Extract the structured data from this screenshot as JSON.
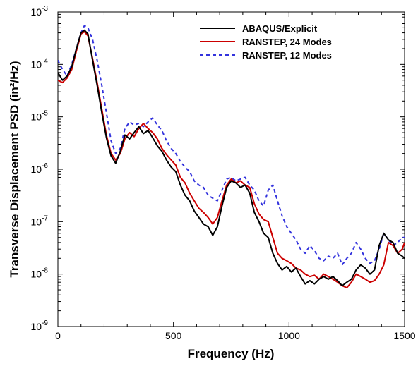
{
  "chart_data": {
    "type": "line",
    "xlabel": "Frequency (Hz)",
    "ylabel": "Transverse Displacement PSD (in²/Hz)",
    "xlim": [
      0,
      1500
    ],
    "ylim": [
      1e-09,
      0.001
    ],
    "y_scale": "log",
    "x_ticks": [
      "0",
      "500",
      "1000",
      "1500"
    ],
    "x_tick_values": [
      0,
      500,
      1000,
      1500
    ],
    "y_ticks": [
      {
        "base": "10",
        "exp": "-3",
        "value": 0.001
      },
      {
        "base": "10",
        "exp": "-4",
        "value": 0.0001
      },
      {
        "base": "10",
        "exp": "-5",
        "value": 1e-05
      },
      {
        "base": "10",
        "exp": "-6",
        "value": 1e-06
      },
      {
        "base": "10",
        "exp": "-7",
        "value": 1e-07
      },
      {
        "base": "10",
        "exp": "-8",
        "value": 1e-08
      },
      {
        "base": "10",
        "exp": "-9",
        "value": 1e-09
      }
    ],
    "grid": false,
    "legend_position": "top-right",
    "series": [
      {
        "name": "ABAQUS/Explicit",
        "color": "#000000",
        "dash": "solid",
        "x": [
          0,
          20,
          40,
          60,
          80,
          100,
          115,
          130,
          150,
          170,
          190,
          210,
          230,
          250,
          270,
          290,
          310,
          330,
          350,
          370,
          390,
          410,
          430,
          450,
          470,
          490,
          510,
          530,
          550,
          570,
          590,
          610,
          630,
          650,
          670,
          690,
          710,
          730,
          750,
          770,
          790,
          810,
          830,
          850,
          870,
          890,
          910,
          930,
          950,
          970,
          990,
          1010,
          1030,
          1050,
          1070,
          1090,
          1110,
          1130,
          1150,
          1170,
          1190,
          1210,
          1230,
          1250,
          1270,
          1290,
          1310,
          1330,
          1350,
          1370,
          1390,
          1410,
          1430,
          1450,
          1470,
          1490,
          1500
        ],
        "y": [
          7e-05,
          5e-05,
          6e-05,
          9e-05,
          0.0002,
          0.0004,
          0.00045,
          0.00038,
          0.00012,
          4e-05,
          1.2e-05,
          4e-06,
          1.8e-06,
          1.3e-06,
          2.2e-06,
          4.5e-06,
          3.8e-06,
          5e-06,
          6.5e-06,
          4.8e-06,
          5.5e-06,
          4e-06,
          2.8e-06,
          2.2e-06,
          1.5e-06,
          1.1e-06,
          9e-07,
          5e-07,
          3.2e-07,
          2.5e-07,
          1.6e-07,
          1.2e-07,
          9e-08,
          8e-08,
          5.5e-08,
          8e-08,
          2e-07,
          4.5e-07,
          6e-07,
          5.5e-07,
          4.5e-07,
          5e-07,
          3.5e-07,
          1.5e-07,
          1e-07,
          6e-08,
          5e-08,
          2.5e-08,
          1.6e-08,
          1.2e-08,
          1.4e-08,
          1.1e-08,
          1.3e-08,
          9e-09,
          6.5e-09,
          7.5e-09,
          6.5e-09,
          8e-09,
          9e-09,
          8e-09,
          9e-09,
          7.5e-09,
          6e-09,
          7e-09,
          8e-09,
          1.2e-08,
          1.5e-08,
          1.3e-08,
          1e-08,
          1.2e-08,
          3.5e-08,
          6e-08,
          4.5e-08,
          4e-08,
          2.5e-08,
          2.2e-08,
          2e-08
        ]
      },
      {
        "name": "RANSTEP, 24 Modes",
        "color": "#cc0000",
        "dash": "solid",
        "x": [
          0,
          20,
          40,
          60,
          80,
          100,
          115,
          130,
          150,
          170,
          190,
          210,
          230,
          250,
          270,
          290,
          310,
          330,
          350,
          370,
          390,
          410,
          430,
          450,
          470,
          490,
          510,
          530,
          550,
          570,
          590,
          610,
          630,
          650,
          670,
          690,
          710,
          730,
          750,
          770,
          790,
          810,
          830,
          850,
          870,
          890,
          910,
          930,
          950,
          970,
          990,
          1010,
          1030,
          1050,
          1070,
          1090,
          1110,
          1130,
          1150,
          1170,
          1190,
          1210,
          1230,
          1250,
          1270,
          1290,
          1310,
          1330,
          1350,
          1370,
          1390,
          1410,
          1430,
          1450,
          1470,
          1490,
          1500
        ],
        "y": [
          5e-05,
          4.5e-05,
          5.5e-05,
          8e-05,
          0.00018,
          0.00038,
          0.00042,
          0.00035,
          0.00013,
          4.5e-05,
          1.4e-05,
          4.5e-06,
          2e-06,
          1.5e-06,
          2e-06,
          3.8e-06,
          5e-06,
          4.2e-06,
          6e-06,
          7.5e-06,
          6e-06,
          5e-06,
          3.8e-06,
          2.5e-06,
          1.9e-06,
          1.5e-06,
          1.2e-06,
          7e-07,
          5.5e-07,
          3.5e-07,
          2.5e-07,
          1.8e-07,
          1.5e-07,
          1.2e-07,
          9e-08,
          1.2e-07,
          2.5e-07,
          5e-07,
          6.5e-07,
          5.5e-07,
          6e-07,
          5e-07,
          4.5e-07,
          2.2e-07,
          1.4e-07,
          1.1e-07,
          1e-07,
          5e-08,
          2.5e-08,
          2e-08,
          1.8e-08,
          1.6e-08,
          1.3e-08,
          1.2e-08,
          1e-08,
          9e-09,
          9.5e-09,
          8e-09,
          1e-08,
          9e-09,
          8e-09,
          7e-09,
          6e-09,
          5.5e-09,
          7e-09,
          1e-08,
          9e-09,
          8e-09,
          7e-09,
          7.5e-09,
          1e-08,
          1.5e-08,
          4e-08,
          3.5e-08,
          2.5e-08,
          3e-08,
          4e-08
        ]
      },
      {
        "name": "RANSTEP, 12 Modes",
        "color": "#3333dd",
        "dash": "dashed",
        "x": [
          0,
          20,
          40,
          60,
          80,
          100,
          115,
          130,
          150,
          170,
          190,
          210,
          230,
          250,
          270,
          290,
          310,
          330,
          350,
          370,
          390,
          410,
          430,
          450,
          470,
          490,
          510,
          530,
          550,
          570,
          590,
          610,
          630,
          650,
          670,
          690,
          710,
          730,
          750,
          770,
          790,
          810,
          830,
          850,
          870,
          890,
          910,
          930,
          950,
          970,
          990,
          1010,
          1030,
          1050,
          1070,
          1090,
          1110,
          1130,
          1150,
          1170,
          1190,
          1210,
          1230,
          1250,
          1270,
          1290,
          1310,
          1330,
          1350,
          1370,
          1390,
          1410,
          1430,
          1450,
          1470,
          1490,
          1500
        ],
        "y": [
          0.00012,
          8e-05,
          6e-05,
          0.0001,
          0.0002,
          0.0004,
          0.00055,
          0.0005,
          0.0003,
          0.00012,
          4e-05,
          1.2e-05,
          3.5e-06,
          2e-06,
          2.5e-06,
          6e-06,
          8e-06,
          7e-06,
          7.5e-06,
          6.5e-06,
          8e-06,
          9.5e-06,
          7e-06,
          5.5e-06,
          3.5e-06,
          2.5e-06,
          2e-06,
          1.4e-06,
          1.1e-06,
          9e-07,
          6e-07,
          5e-07,
          4.5e-07,
          3.2e-07,
          2.8e-07,
          2.5e-07,
          4e-07,
          6.5e-07,
          7e-07,
          6e-07,
          6.5e-07,
          7e-07,
          5e-07,
          4e-07,
          2.5e-07,
          2e-07,
          4e-07,
          5e-07,
          2.5e-07,
          1.3e-07,
          8e-08,
          6e-08,
          4.5e-08,
          3e-08,
          2.5e-08,
          3.5e-08,
          2.8e-08,
          2e-08,
          1.8e-08,
          2.2e-08,
          2e-08,
          2.5e-08,
          1.5e-08,
          2e-08,
          2.5e-08,
          4e-08,
          3e-08,
          2e-08,
          1.6e-08,
          1.8e-08,
          3e-08,
          6e-08,
          4.5e-08,
          3.5e-08,
          4e-08,
          5e-08,
          5e-08
        ]
      }
    ]
  }
}
